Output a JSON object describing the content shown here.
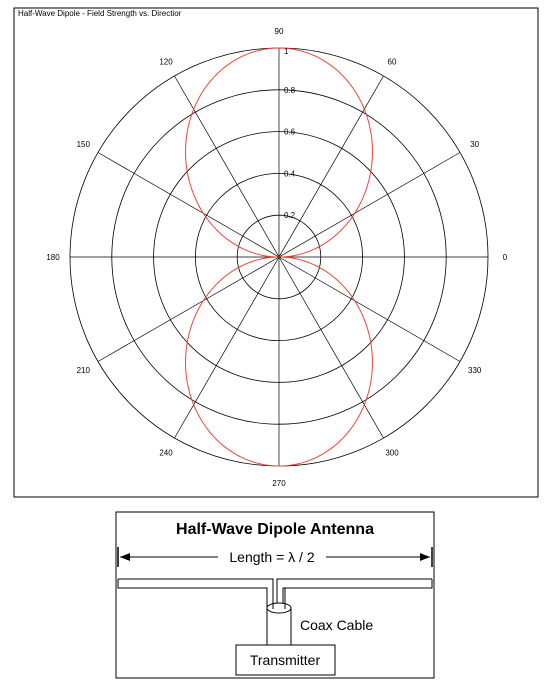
{
  "chart_data": {
    "type": "polar",
    "title": "Half-Wave Dipole - Field Strength vs. Directior",
    "angle_ticks": [
      0,
      30,
      60,
      90,
      120,
      150,
      180,
      210,
      240,
      270,
      300,
      330
    ],
    "radial_ticks": [
      0.2,
      0.4,
      0.6,
      0.8,
      1
    ],
    "radial_range": [
      0,
      1
    ],
    "series": [
      {
        "formula": "|cos((pi/2)·cos θ) / sin θ|",
        "color": "#e8473a",
        "angles_deg": [
          0,
          10,
          20,
          30,
          40,
          50,
          60,
          70,
          80,
          90,
          100,
          110,
          120,
          130,
          140,
          150,
          160,
          170,
          180
        ],
        "values": [
          0,
          0.043,
          0.094,
          0.155,
          0.246,
          0.367,
          0.5,
          0.64,
          0.824,
          1,
          0.824,
          0.64,
          0.5,
          0.367,
          0.246,
          0.155,
          0.094,
          0.043,
          0
        ]
      }
    ],
    "grid": true
  },
  "diagram": {
    "title": "Half-Wave Dipole Antenna",
    "length_label": "Length = λ / 2",
    "coax_label": "Coax Cable",
    "transmitter_label": "Transmitter"
  },
  "colors": {
    "pattern": "#e8473a",
    "grid": "#000000"
  }
}
